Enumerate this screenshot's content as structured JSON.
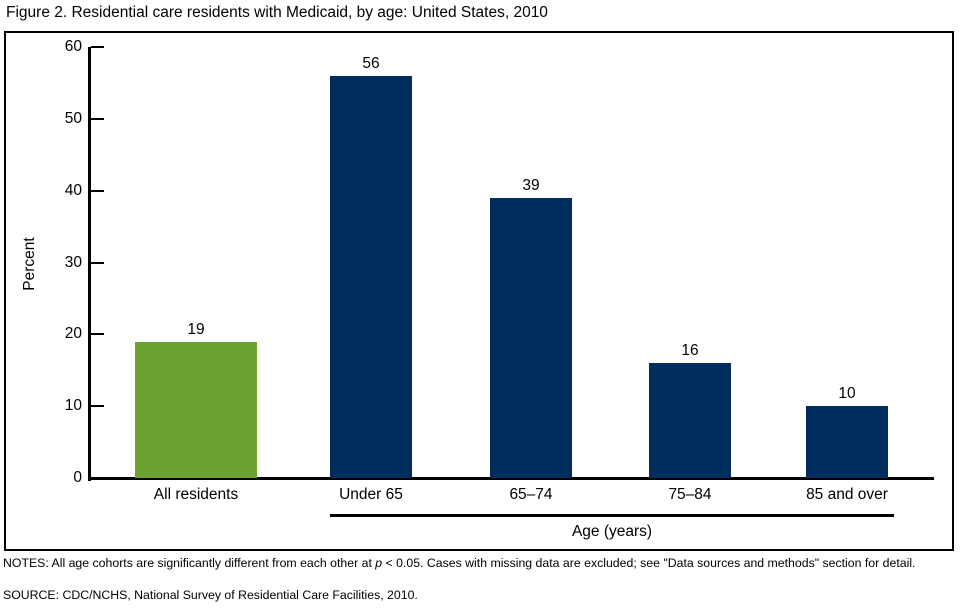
{
  "figure": {
    "title": "Figure 2. Residential care residents with Medicaid, by age: United States, 2010"
  },
  "chart_data": {
    "type": "bar",
    "title": "Figure 2. Residential care residents with Medicaid, by age: United States, 2010",
    "categories": [
      "All residents",
      "Under 65",
      "65–74",
      "75–84",
      "85 and over"
    ],
    "values": [
      19,
      56,
      39,
      16,
      10
    ],
    "bar_colors": [
      "#6AA32F",
      "#002D5E",
      "#002D5E",
      "#002D5E",
      "#002D5E"
    ],
    "xlabel": "Age (years)",
    "xlabel_applies_to": [
      "Under 65",
      "65–74",
      "75–84",
      "85 and over"
    ],
    "ylabel": "Percent",
    "ylim": [
      0,
      60
    ],
    "yticks": [
      0,
      10,
      20,
      30,
      40,
      50,
      60
    ],
    "grid": false,
    "legend": "none",
    "value_labels_shown": true
  },
  "axis": {
    "ylabel": "Percent",
    "xlabel": "Age (years)"
  },
  "notes": {
    "prefix": "NOTES: All age cohorts are significantly different from each other at ",
    "p": "p",
    "suffix": " < 0.05. Cases with missing data are excluded; see \"Data sources and methods\" section for detail.",
    "source": "SOURCE: CDC/NCHS, National Survey of Residential Care Facilities, 2010."
  }
}
